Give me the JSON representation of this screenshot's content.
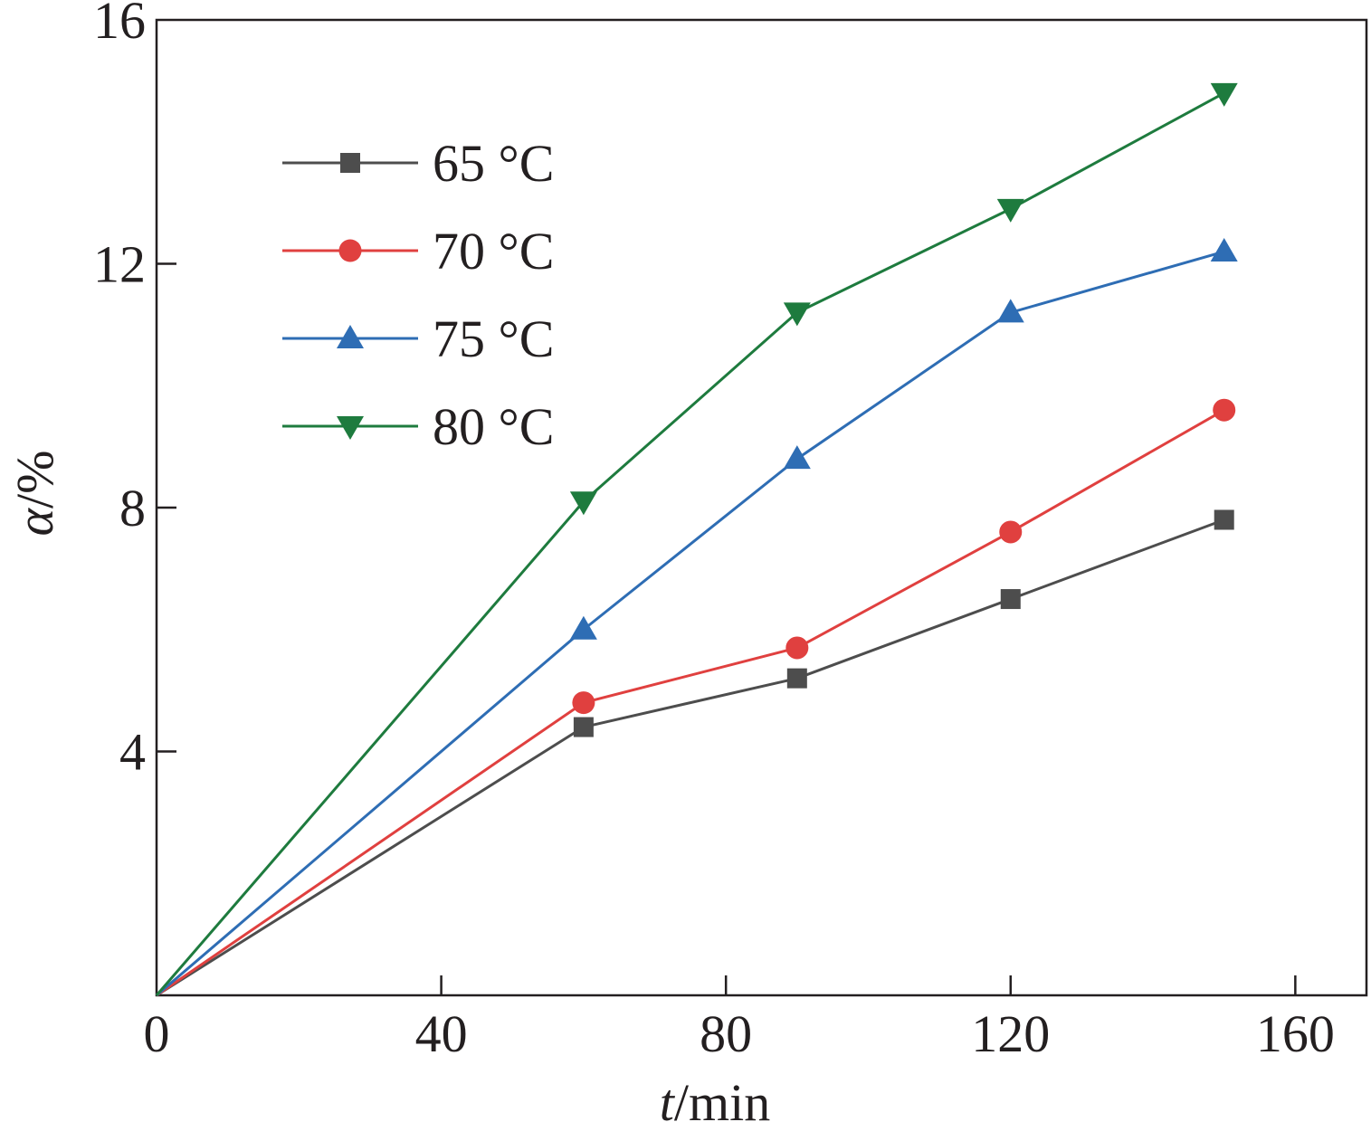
{
  "chart_data": {
    "type": "line",
    "xlabel": {
      "var": "t",
      "unit": "/min"
    },
    "ylabel": {
      "var": "α",
      "unit": "/%"
    },
    "xlim": [
      0,
      170
    ],
    "ylim": [
      0,
      16
    ],
    "xticks": [
      0,
      40,
      80,
      120,
      160
    ],
    "yticks": [
      4,
      8,
      12,
      16
    ],
    "x": [
      0,
      60,
      90,
      120,
      150
    ],
    "legend_position": "top-left",
    "grid": false,
    "series": [
      {
        "name": "65 °C",
        "color": "#4d4d4d",
        "marker": "square",
        "values": [
          0,
          4.4,
          5.2,
          6.5,
          7.8
        ]
      },
      {
        "name": "70 °C",
        "color": "#e0403f",
        "marker": "circle",
        "values": [
          0,
          4.8,
          5.7,
          7.6,
          9.6
        ]
      },
      {
        "name": "75 °C",
        "color": "#2e6db4",
        "marker": "triangle-up",
        "values": [
          0,
          6.0,
          8.8,
          11.2,
          12.2
        ]
      },
      {
        "name": "80 °C",
        "color": "#1e7b3e",
        "marker": "triangle-down",
        "values": [
          0,
          8.1,
          11.2,
          12.9,
          14.8
        ]
      }
    ]
  }
}
